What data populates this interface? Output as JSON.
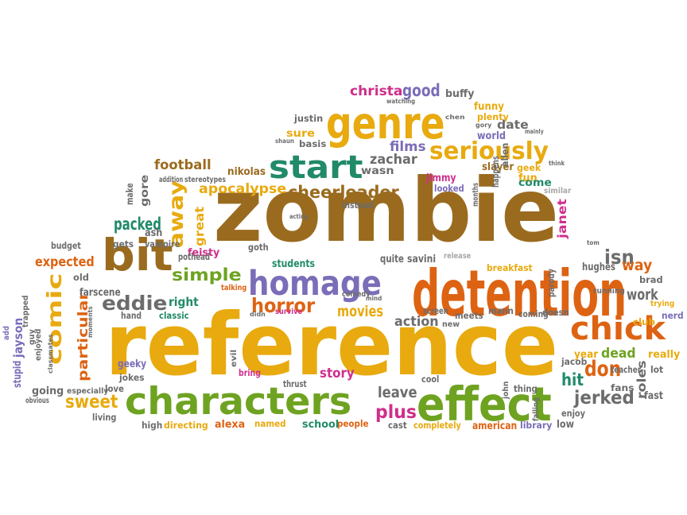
{
  "palette": {
    "brown": "#9a6b1f",
    "gold": "#e8aa0e",
    "orange": "#dd6313",
    "green": "#6ea321",
    "teal": "#218a69",
    "purple": "#7b6db8",
    "magenta": "#cf2f8c",
    "gray": "#6c6c6c",
    "lgray": "#a7a7a7"
  },
  "words": [
    {
      "text": "zombie",
      "color": "brown"
    },
    {
      "text": "reference",
      "color": "gold"
    },
    {
      "text": "detention",
      "color": "orange"
    },
    {
      "text": "characters",
      "color": "green"
    },
    {
      "text": "effect",
      "color": "green"
    },
    {
      "text": "genre",
      "color": "gold"
    },
    {
      "text": "homage",
      "color": "purple"
    },
    {
      "text": "bit",
      "color": "brown"
    },
    {
      "text": "chick",
      "color": "orange"
    },
    {
      "text": "start",
      "color": "teal"
    },
    {
      "text": "comic",
      "color": "gold"
    },
    {
      "text": "seriously",
      "color": "gold"
    },
    {
      "text": "away",
      "color": "gold"
    },
    {
      "text": "horror",
      "color": "orange"
    },
    {
      "text": "eddie",
      "color": "gray"
    },
    {
      "text": "simple",
      "color": "green"
    },
    {
      "text": "cheerleader",
      "color": "brown"
    },
    {
      "text": "apocalypse",
      "color": "gold"
    },
    {
      "text": "plus",
      "color": "magenta"
    },
    {
      "text": "particular",
      "color": "orange"
    },
    {
      "text": "sweet",
      "color": "gold"
    },
    {
      "text": "jerked",
      "color": "gray"
    },
    {
      "text": "don",
      "color": "orange"
    },
    {
      "text": "christa",
      "color": "magenta"
    },
    {
      "text": "good",
      "color": "purple"
    },
    {
      "text": "films",
      "color": "purple"
    },
    {
      "text": "zachar",
      "color": "gray"
    },
    {
      "text": "football",
      "color": "brown"
    },
    {
      "text": "packed",
      "color": "teal"
    },
    {
      "text": "expected",
      "color": "orange"
    },
    {
      "text": "isn",
      "color": "gray"
    },
    {
      "text": "way",
      "color": "orange"
    },
    {
      "text": "work",
      "color": "gray"
    },
    {
      "text": "movies",
      "color": "gold"
    },
    {
      "text": "action",
      "color": "gray"
    },
    {
      "text": "leave",
      "color": "gray"
    },
    {
      "text": "story",
      "color": "magenta"
    },
    {
      "text": "right",
      "color": "teal"
    },
    {
      "text": "hit",
      "color": "teal"
    },
    {
      "text": "dead",
      "color": "green"
    },
    {
      "text": "roles",
      "color": "gray"
    },
    {
      "text": "jayson",
      "color": "purple"
    },
    {
      "text": "great",
      "color": "gold"
    },
    {
      "text": "janet",
      "color": "magenta"
    },
    {
      "text": "gore",
      "color": "gray"
    },
    {
      "text": "buffy",
      "color": "gray"
    },
    {
      "text": "funny",
      "color": "gold"
    },
    {
      "text": "plenty",
      "color": "gold"
    },
    {
      "text": "date",
      "color": "gray"
    },
    {
      "text": "world",
      "color": "purple"
    },
    {
      "text": "sure",
      "color": "gold"
    },
    {
      "text": "justin",
      "color": "gray"
    },
    {
      "text": "basis",
      "color": "gray"
    },
    {
      "text": "wasn",
      "color": "gray"
    },
    {
      "text": "slayer",
      "color": "brown"
    },
    {
      "text": "geek",
      "color": "gold"
    },
    {
      "text": "fun",
      "color": "gold"
    },
    {
      "text": "jimmy",
      "color": "magenta"
    },
    {
      "text": "looked",
      "color": "purple"
    },
    {
      "text": "come",
      "color": "teal"
    },
    {
      "text": "similar",
      "color": "lgray"
    },
    {
      "text": "nikolas",
      "color": "brown"
    },
    {
      "text": "instead",
      "color": "gray"
    },
    {
      "text": "students",
      "color": "teal"
    },
    {
      "text": "quite",
      "color": "gray"
    },
    {
      "text": "savini",
      "color": "gray"
    },
    {
      "text": "release",
      "color": "lgray"
    },
    {
      "text": "breakfast",
      "color": "gold"
    },
    {
      "text": "hughes",
      "color": "gray"
    },
    {
      "text": "brad",
      "color": "gray"
    },
    {
      "text": "trying",
      "color": "gold"
    },
    {
      "text": "nerd",
      "color": "purple"
    },
    {
      "text": "club",
      "color": "gold"
    },
    {
      "text": "really",
      "color": "gold"
    },
    {
      "text": "lot",
      "color": "gray"
    },
    {
      "text": "teacher",
      "color": "gray"
    },
    {
      "text": "fast",
      "color": "gray"
    },
    {
      "text": "fans",
      "color": "gray"
    },
    {
      "text": "enjoy",
      "color": "gray"
    },
    {
      "text": "year",
      "color": "gold"
    },
    {
      "text": "jacob",
      "color": "gray"
    },
    {
      "text": "thing",
      "color": "gray"
    },
    {
      "text": "low",
      "color": "gray"
    },
    {
      "text": "library",
      "color": "purple"
    },
    {
      "text": "american",
      "color": "orange"
    },
    {
      "text": "completely",
      "color": "gold"
    },
    {
      "text": "cast",
      "color": "gray"
    },
    {
      "text": "people",
      "color": "orange"
    },
    {
      "text": "school",
      "color": "teal"
    },
    {
      "text": "named",
      "color": "gold"
    },
    {
      "text": "alexa",
      "color": "orange"
    },
    {
      "text": "directing",
      "color": "gold"
    },
    {
      "text": "high",
      "color": "gray"
    },
    {
      "text": "living",
      "color": "gray"
    },
    {
      "text": "especially",
      "color": "gray"
    },
    {
      "text": "love",
      "color": "gray"
    },
    {
      "text": "going",
      "color": "gray"
    },
    {
      "text": "stupid",
      "color": "purple"
    },
    {
      "text": "jokes",
      "color": "gray"
    },
    {
      "text": "geeky",
      "color": "purple"
    },
    {
      "text": "classic",
      "color": "teal"
    },
    {
      "text": "hand",
      "color": "gray"
    },
    {
      "text": "farscene",
      "color": "gray"
    },
    {
      "text": "old",
      "color": "gray"
    },
    {
      "text": "budget",
      "color": "gray"
    },
    {
      "text": "gets",
      "color": "gray"
    },
    {
      "text": "ash",
      "color": "gray"
    },
    {
      "text": "vampire",
      "color": "gray"
    },
    {
      "text": "feisty",
      "color": "magenta"
    },
    {
      "text": "pothead",
      "color": "gray"
    },
    {
      "text": "talking",
      "color": "orange"
    },
    {
      "text": "goth",
      "color": "gray"
    },
    {
      "text": "make",
      "color": "gray"
    },
    {
      "text": "comedy",
      "color": "gray"
    },
    {
      "text": "survive",
      "color": "magenta"
    },
    {
      "text": "bring",
      "color": "magenta"
    },
    {
      "text": "thrust",
      "color": "gray"
    },
    {
      "text": "cool",
      "color": "gray"
    },
    {
      "text": "screen",
      "color": "gray"
    },
    {
      "text": "meets",
      "color": "gray"
    },
    {
      "text": "new",
      "color": "gray"
    },
    {
      "text": "mann",
      "color": "gray"
    },
    {
      "text": "coming",
      "color": "gray"
    },
    {
      "text": "doesn",
      "color": "gray"
    },
    {
      "text": "parody",
      "color": "gray"
    },
    {
      "text": "running",
      "color": "gray"
    },
    {
      "text": "happens",
      "color": "gray"
    },
    {
      "text": "months",
      "color": "gray"
    },
    {
      "text": "allen",
      "color": "gray"
    },
    {
      "text": "addition",
      "color": "gray"
    },
    {
      "text": "stereotypes",
      "color": "gray"
    },
    {
      "text": "classmates",
      "color": "gray"
    },
    {
      "text": "moments",
      "color": "gray"
    },
    {
      "text": "trapped",
      "color": "gray"
    },
    {
      "text": "guy",
      "color": "gray"
    },
    {
      "text": "enjoyed",
      "color": "gray"
    },
    {
      "text": "add",
      "color": "purple"
    },
    {
      "text": "obvious",
      "color": "gray"
    },
    {
      "text": "evil",
      "color": "gray"
    },
    {
      "text": "falling",
      "color": "gray"
    },
    {
      "text": "john",
      "color": "gray"
    },
    {
      "text": "watching",
      "color": "gray"
    },
    {
      "text": "chen",
      "color": "gray"
    },
    {
      "text": "gory",
      "color": "gray"
    },
    {
      "text": "mainly",
      "color": "gray"
    },
    {
      "text": "think",
      "color": "gray"
    },
    {
      "text": "acting",
      "color": "gray"
    },
    {
      "text": "shaun",
      "color": "gray"
    },
    {
      "text": "mind",
      "color": "gray"
    },
    {
      "text": "didn",
      "color": "gray"
    },
    {
      "text": "tom",
      "color": "gray"
    }
  ]
}
